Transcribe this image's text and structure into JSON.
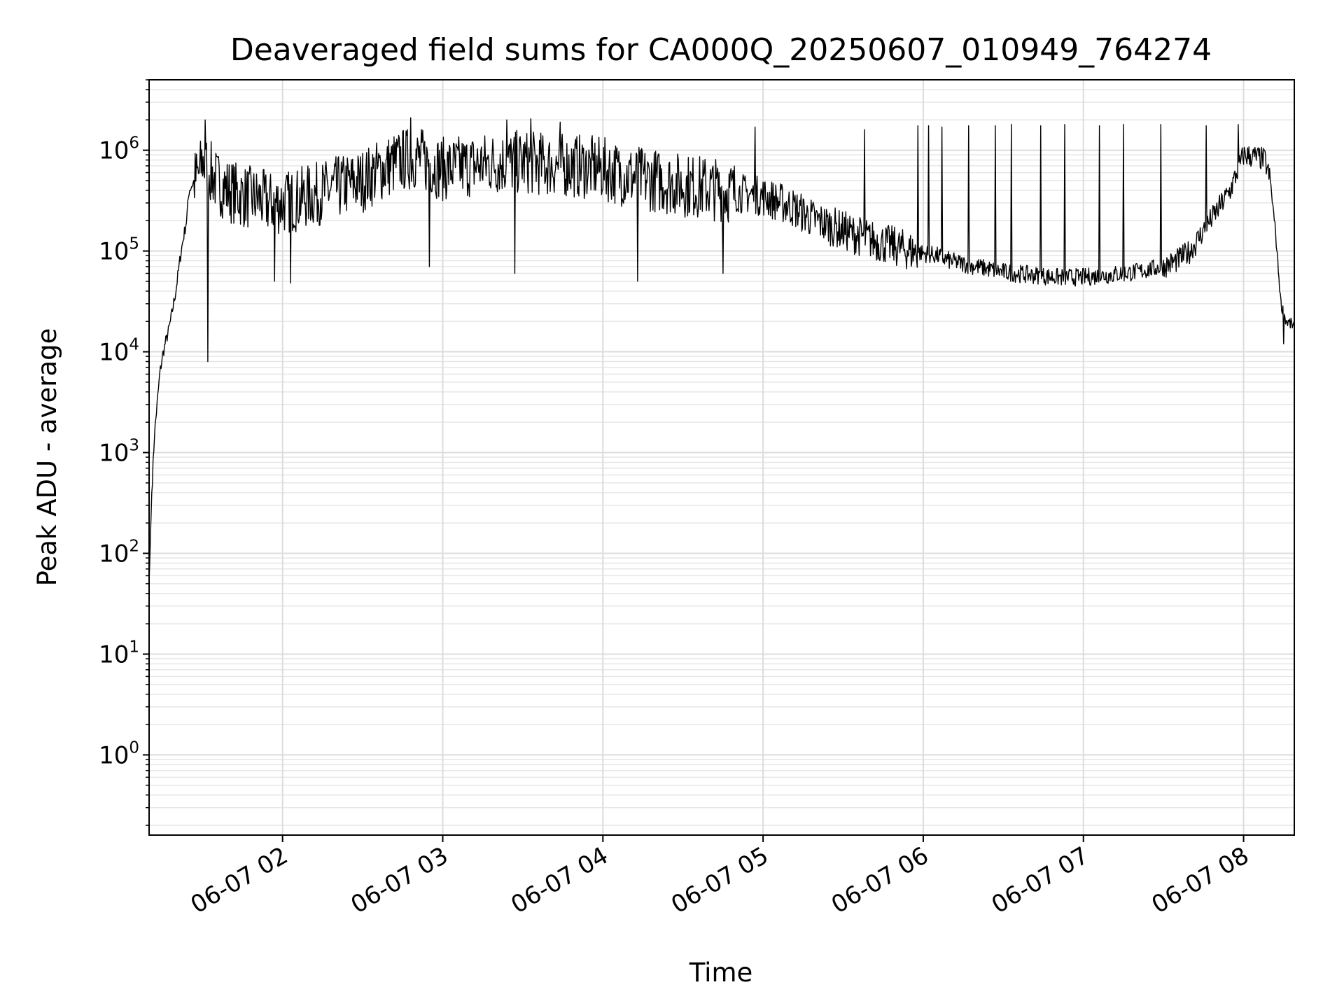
{
  "chart_data": {
    "type": "line",
    "title": "Deaveraged field sums for CA000Q_20250607_010949_764274",
    "xlabel": "Time",
    "ylabel": "Peak ADU - average",
    "y_scale": "log",
    "ylim": [
      0.16,
      5000000
    ],
    "xlim": [
      "2025-06-07 01:10",
      "2025-06-07 08:19"
    ],
    "grid": {
      "major": true,
      "minor_y": true
    },
    "line_color": "#000000",
    "x_ticks": [
      {
        "time": "2025-06-07 02:00",
        "label": "06-07 02"
      },
      {
        "time": "2025-06-07 03:00",
        "label": "06-07 03"
      },
      {
        "time": "2025-06-07 04:00",
        "label": "06-07 04"
      },
      {
        "time": "2025-06-07 05:00",
        "label": "06-07 05"
      },
      {
        "time": "2025-06-07 06:00",
        "label": "06-07 06"
      },
      {
        "time": "2025-06-07 07:00",
        "label": "06-07 07"
      },
      {
        "time": "2025-06-07 08:00",
        "label": "06-07 08"
      }
    ],
    "y_ticks": [
      {
        "value": 1,
        "base": "10",
        "exp": "0"
      },
      {
        "value": 10,
        "base": "10",
        "exp": "1"
      },
      {
        "value": 100,
        "base": "10",
        "exp": "2"
      },
      {
        "value": 1000,
        "base": "10",
        "exp": "3"
      },
      {
        "value": 10000,
        "base": "10",
        "exp": "4"
      },
      {
        "value": 100000,
        "base": "10",
        "exp": "5"
      },
      {
        "value": 1000000,
        "base": "10",
        "exp": "6"
      }
    ],
    "series": [
      {
        "name": "",
        "x": [
          "2025-06-07 01:10",
          "2025-06-07 01:11",
          "2025-06-07 01:12",
          "2025-06-07 01:13",
          "2025-06-07 01:14",
          "2025-06-07 01:15",
          "2025-06-07 01:16",
          "2025-06-07 01:17",
          "2025-06-07 01:18",
          "2025-06-07 01:20",
          "2025-06-07 01:22",
          "2025-06-07 01:24",
          "2025-06-07 01:25",
          "2025-06-07 01:27",
          "2025-06-07 01:29",
          "2025-06-07 01:30",
          "2025-06-07 01:31",
          "2025-06-07 01:32",
          "2025-06-07 01:33",
          "2025-06-07 01:34",
          "2025-06-07 01:35",
          "2025-06-07 01:37",
          "2025-06-07 01:40",
          "2025-06-07 01:45",
          "2025-06-07 01:50",
          "2025-06-07 01:55",
          "2025-06-07 02:00",
          "2025-06-07 02:05",
          "2025-06-07 02:10",
          "2025-06-07 02:15",
          "2025-06-07 02:20",
          "2025-06-07 02:25",
          "2025-06-07 02:30",
          "2025-06-07 02:35",
          "2025-06-07 02:40",
          "2025-06-07 02:45",
          "2025-06-07 02:50",
          "2025-06-07 02:55",
          "2025-06-07 03:00",
          "2025-06-07 03:10",
          "2025-06-07 03:20",
          "2025-06-07 03:30",
          "2025-06-07 03:40",
          "2025-06-07 03:50",
          "2025-06-07 04:00",
          "2025-06-07 04:10",
          "2025-06-07 04:20",
          "2025-06-07 04:30",
          "2025-06-07 04:40",
          "2025-06-07 04:50",
          "2025-06-07 05:00",
          "2025-06-07 05:10",
          "2025-06-07 05:20",
          "2025-06-07 05:30",
          "2025-06-07 05:40",
          "2025-06-07 05:50",
          "2025-06-07 05:55",
          "2025-06-07 06:00",
          "2025-06-07 06:05",
          "2025-06-07 06:10",
          "2025-06-07 06:20",
          "2025-06-07 06:30",
          "2025-06-07 06:40",
          "2025-06-07 06:50",
          "2025-06-07 07:00",
          "2025-06-07 07:10",
          "2025-06-07 07:20",
          "2025-06-07 07:30",
          "2025-06-07 07:35",
          "2025-06-07 07:40",
          "2025-06-07 07:45",
          "2025-06-07 07:50",
          "2025-06-07 07:55",
          "2025-06-07 08:00",
          "2025-06-07 08:05",
          "2025-06-07 08:08",
          "2025-06-07 08:10",
          "2025-06-07 08:12",
          "2025-06-07 08:14",
          "2025-06-07 08:16",
          "2025-06-07 08:19"
        ],
        "y": [
          50,
          400,
          1500,
          3000,
          6000,
          9000,
          12000,
          15000,
          20000,
          40000,
          100000,
          200000,
          400000,
          500000,
          600000,
          800000,
          650000,
          700000,
          600000,
          550000,
          500000,
          450000,
          400000,
          350000,
          330000,
          300000,
          300000,
          320000,
          350000,
          380000,
          420000,
          460000,
          500000,
          600000,
          700000,
          800000,
          850000,
          750000,
          650000,
          700000,
          750000,
          760000,
          720000,
          700000,
          650000,
          550000,
          500000,
          450000,
          420000,
          380000,
          350000,
          280000,
          200000,
          160000,
          130000,
          110000,
          100000,
          95000,
          90000,
          80000,
          70000,
          62000,
          58000,
          55000,
          55000,
          58000,
          62000,
          70000,
          80000,
          100000,
          160000,
          250000,
          400000,
          900000,
          850000,
          800000,
          500000,
          150000,
          30000,
          20000,
          18000
        ],
        "spikes": [
          [
            "2025-06-07 01:31",
            2000000
          ],
          [
            "2025-06-07 02:48",
            2100000
          ],
          [
            "2025-06-07 02:55",
            2300000
          ],
          [
            "2025-06-07 03:24",
            2000000
          ],
          [
            "2025-06-07 03:33",
            2050000
          ],
          [
            "2025-06-07 03:44",
            1900000
          ],
          [
            "2025-06-07 04:57",
            1700000
          ],
          [
            "2025-06-07 05:38",
            1600000
          ],
          [
            "2025-06-07 05:58",
            1750000
          ],
          [
            "2025-06-07 06:02",
            1750000
          ],
          [
            "2025-06-07 06:07",
            1700000
          ],
          [
            "2025-06-07 06:17",
            1750000
          ],
          [
            "2025-06-07 06:27",
            1750000
          ],
          [
            "2025-06-07 06:33",
            1800000
          ],
          [
            "2025-06-07 06:44",
            1750000
          ],
          [
            "2025-06-07 06:53",
            1800000
          ],
          [
            "2025-06-07 07:06",
            1750000
          ],
          [
            "2025-06-07 07:15",
            1800000
          ],
          [
            "2025-06-07 07:29",
            1800000
          ],
          [
            "2025-06-07 07:46",
            1750000
          ],
          [
            "2025-06-07 07:58",
            1800000
          ]
        ],
        "dips": [
          [
            "2025-06-07 01:32",
            8000
          ],
          [
            "2025-06-07 01:57",
            50000
          ],
          [
            "2025-06-07 02:03",
            48000
          ],
          [
            "2025-06-07 02:55",
            70000
          ],
          [
            "2025-06-07 03:27",
            60000
          ],
          [
            "2025-06-07 04:13",
            50000
          ],
          [
            "2025-06-07 04:45",
            60000
          ],
          [
            "2025-06-07 07:42",
            90000
          ],
          [
            "2025-06-07 08:15",
            12000
          ]
        ]
      }
    ]
  }
}
